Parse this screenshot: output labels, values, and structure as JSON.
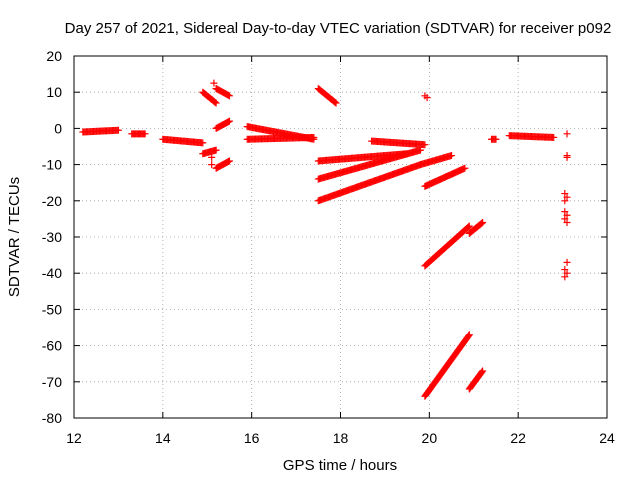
{
  "chart_data": {
    "type": "scatter",
    "title": "Day 257 of 2021, Sidereal Day-to-day VTEC variation (SDTVAR) for receiver p092",
    "xlabel": "GPS time / hours",
    "ylabel": "SDTVAR / TECUs",
    "xlim": [
      12,
      24
    ],
    "ylim": [
      -80,
      20
    ],
    "xticks": [
      "12",
      "14",
      "16",
      "18",
      "20",
      "22",
      "24"
    ],
    "yticks": [
      "20",
      "10",
      "0",
      "-10",
      "-20",
      "-30",
      "-40",
      "-50",
      "-60",
      "-70",
      "-80"
    ],
    "grid": true,
    "marker": "+",
    "color": "#ff0000",
    "segments": [
      {
        "x": [
          12.2,
          13.0
        ],
        "y": [
          -1,
          -0.5
        ]
      },
      {
        "x": [
          13.3,
          13.6
        ],
        "y": [
          -1.5,
          -1.5
        ]
      },
      {
        "x": [
          14.0,
          14.9
        ],
        "y": [
          -3,
          -4
        ]
      },
      {
        "x": [
          14.9,
          15.2
        ],
        "y": [
          10,
          7
        ]
      },
      {
        "x": [
          15.2,
          15.5
        ],
        "y": [
          11,
          9
        ]
      },
      {
        "x": [
          15.2,
          15.5
        ],
        "y": [
          0,
          2
        ]
      },
      {
        "x": [
          14.9,
          15.2
        ],
        "y": [
          -7,
          -6
        ]
      },
      {
        "x": [
          15.2,
          15.5
        ],
        "y": [
          -11,
          -9
        ]
      },
      {
        "x": [
          15.9,
          17.4
        ],
        "y": [
          0.5,
          -3
        ]
      },
      {
        "x": [
          15.9,
          17.4
        ],
        "y": [
          -3,
          -2.5
        ]
      },
      {
        "x": [
          17.5,
          17.9
        ],
        "y": [
          11,
          7
        ]
      },
      {
        "x": [
          17.5,
          19.5
        ],
        "y": [
          -9,
          -7
        ]
      },
      {
        "x": [
          17.5,
          19.8
        ],
        "y": [
          -14,
          -6
        ]
      },
      {
        "x": [
          17.5,
          19.8
        ],
        "y": [
          -20,
          -10
        ]
      },
      {
        "x": [
          18.7,
          19.9
        ],
        "y": [
          -3.5,
          -4.5
        ]
      },
      {
        "x": [
          19.8,
          20.5
        ],
        "y": [
          -10,
          -7.5
        ]
      },
      {
        "x": [
          19.9,
          20.8
        ],
        "y": [
          -16,
          -11
        ]
      },
      {
        "x": [
          19.9,
          20.9
        ],
        "y": [
          -38,
          -27
        ]
      },
      {
        "x": [
          20.9,
          21.2
        ],
        "y": [
          -29,
          -26
        ]
      },
      {
        "x": [
          19.9,
          20.9
        ],
        "y": [
          -74,
          -57
        ]
      },
      {
        "x": [
          20.9,
          21.2
        ],
        "y": [
          -72,
          -67
        ]
      },
      {
        "x": [
          21.4,
          21.5
        ],
        "y": [
          -3,
          -3
        ]
      },
      {
        "x": [
          21.8,
          22.8
        ],
        "y": [
          -2,
          -2.5
        ]
      }
    ],
    "points": [
      [
        15.15,
        12.5
      ],
      [
        15.2,
        11
      ],
      [
        19.9,
        9
      ],
      [
        19.95,
        8.5
      ],
      [
        15.1,
        -8
      ],
      [
        15.1,
        -10
      ],
      [
        23.1,
        -1.5
      ],
      [
        23.1,
        -7.5
      ],
      [
        23.1,
        -8
      ],
      [
        23.05,
        -18
      ],
      [
        23.1,
        -19
      ],
      [
        23.05,
        -20
      ],
      [
        23.05,
        -23
      ],
      [
        23.1,
        -24
      ],
      [
        23.05,
        -25
      ],
      [
        23.1,
        -26
      ],
      [
        23.1,
        -37
      ],
      [
        23.05,
        -39
      ],
      [
        23.1,
        -40
      ],
      [
        23.05,
        -41
      ]
    ]
  }
}
